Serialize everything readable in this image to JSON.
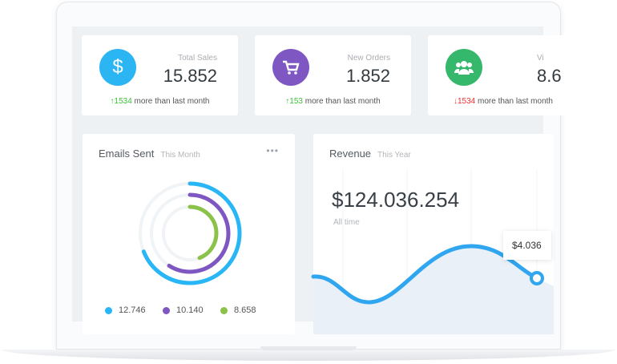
{
  "stats": [
    {
      "label": "Total Sales",
      "value": "15.852",
      "delta": "1534",
      "direction": "up",
      "note": "more than last month",
      "icon": "dollar-icon",
      "color": "#2bb5f3"
    },
    {
      "label": "New Orders",
      "value": "1.852",
      "delta": "153",
      "direction": "up",
      "note": "more than last month",
      "icon": "cart-icon",
      "color": "#7e57c2"
    },
    {
      "label": "Vi",
      "value": "8.6",
      "delta": "1534",
      "direction": "down",
      "note": "more than last month",
      "icon": "users-icon",
      "color": "#35b86b"
    }
  ],
  "emails": {
    "title": "Emails Sent",
    "period": "This Month",
    "menu": "•••",
    "rings": [
      {
        "value": "12.746",
        "fill": 0.69,
        "color": "#29b6f6"
      },
      {
        "value": "10.140",
        "fill": 0.59,
        "color": "#7e57c2"
      },
      {
        "value": "8.658",
        "fill": 0.44,
        "color": "#8bc34a"
      }
    ]
  },
  "revenue": {
    "title": "Revenue",
    "period": "This Year",
    "total": "$124.036.254",
    "total_label": "All time",
    "tooltip": "$4.036",
    "line_color": "#2fa6ef"
  }
}
